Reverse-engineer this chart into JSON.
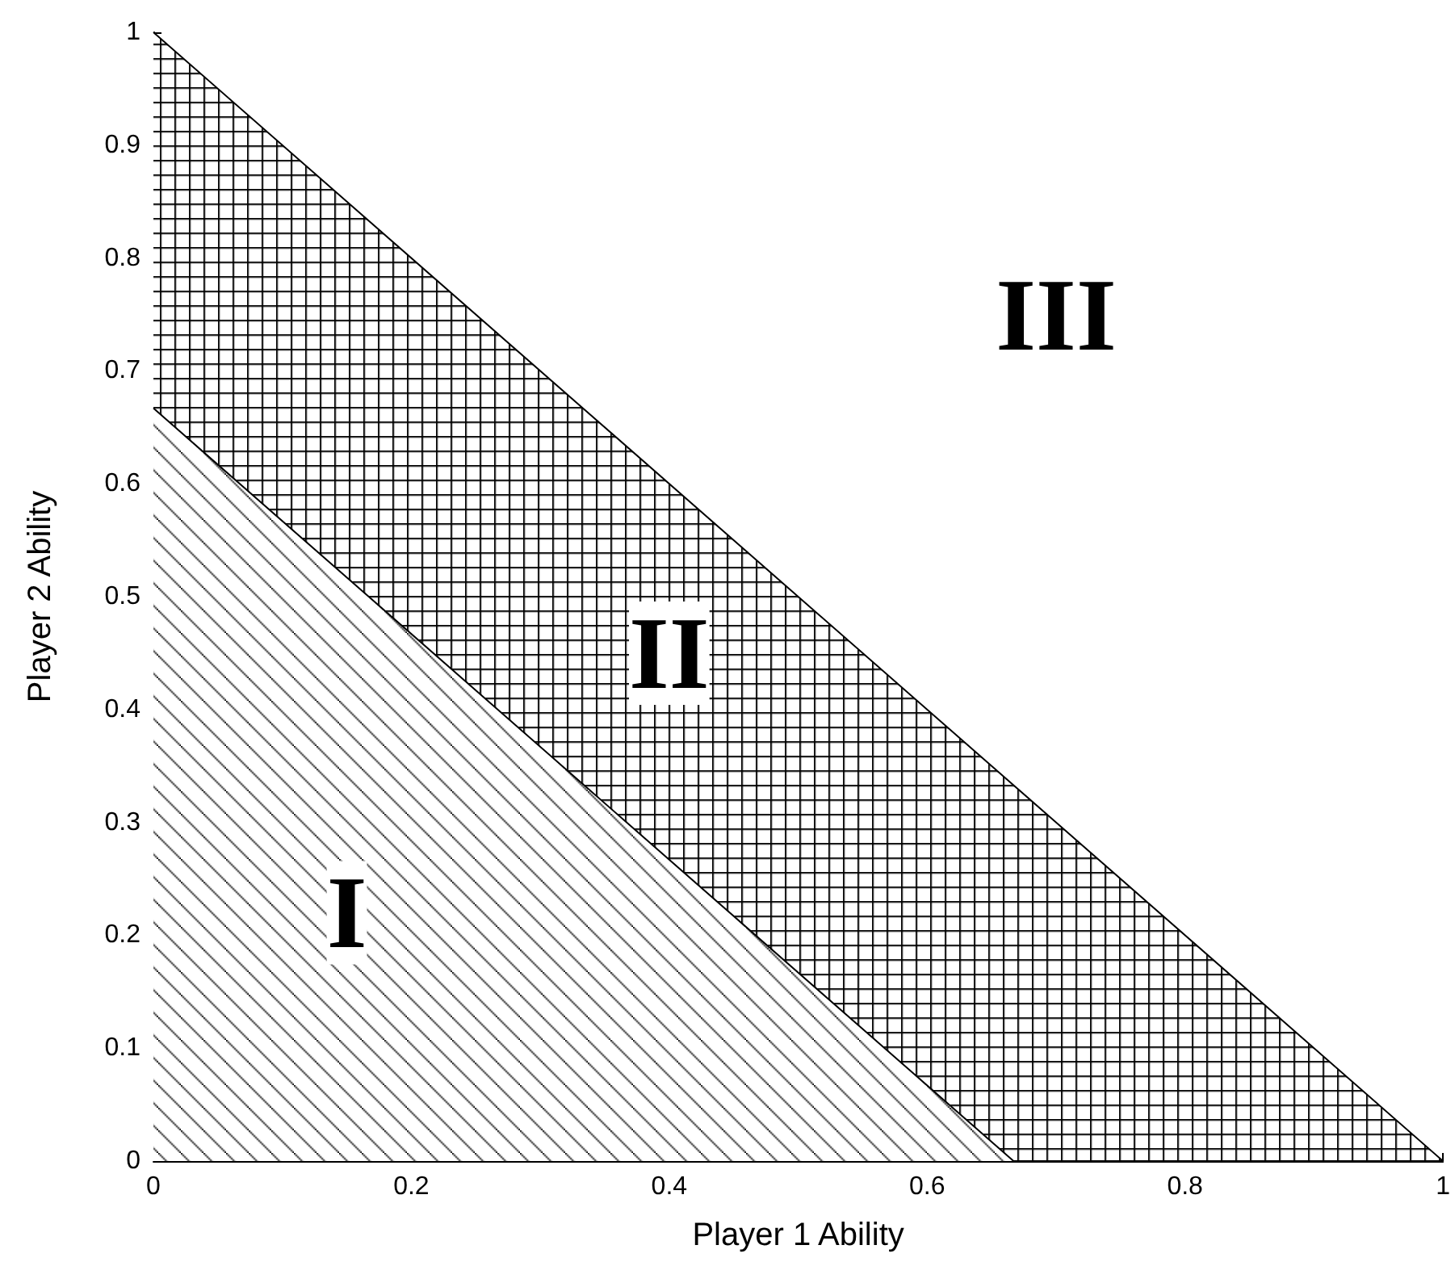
{
  "chart_data": {
    "type": "area",
    "xlabel": "Player 1 Ability",
    "ylabel": "Player 2 Ability",
    "x": [
      0,
      0.667,
      1
    ],
    "series": [
      {
        "color": "#000000",
        "values": [
          1,
          0.333,
          0
        ]
      },
      {
        "color": "#000000",
        "values": [
          0.667,
          0,
          0
        ]
      }
    ],
    "xlim": [
      0,
      1
    ],
    "xticks": [
      0,
      0.2,
      0.4,
      0.6,
      0.8,
      1
    ],
    "ylim": [
      0,
      1
    ],
    "yticks": [
      0,
      0.1,
      0.2,
      0.3,
      0.4,
      0.5,
      0.6,
      0.7,
      0.8,
      0.9,
      1
    ],
    "grid": false,
    "annotations": [
      "I",
      "II",
      "III"
    ]
  }
}
